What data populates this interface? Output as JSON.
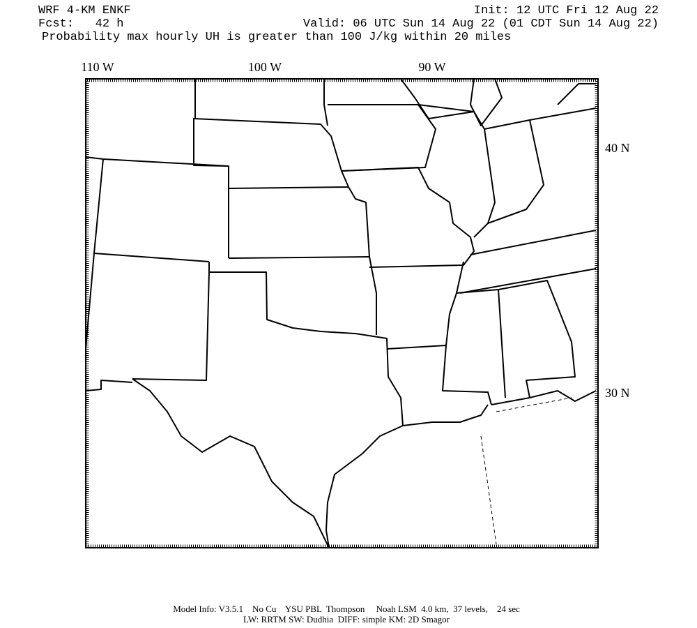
{
  "header": {
    "title": "WRF 4-KM ENKF",
    "forecast": "Fcst:   42 h",
    "init": "Init: 12 UTC Fri 12 Aug 22",
    "valid": "Valid: 06 UTC Sun 14 Aug 22 (01 CDT Sun 14 Aug 22)",
    "description": "Probability max hourly UH is greater than 100 J/kg within 20 miles"
  },
  "map": {
    "longitude_labels": [
      "110 W",
      "100 W",
      "90 W"
    ],
    "latitude_labels": [
      "40 N",
      "30 N"
    ]
  },
  "footer": {
    "line1": "Model Info: V3.5.1    No Cu    YSU PBL  Thompson     Noah LSM  4.0 km,  37 levels,    24 sec",
    "line2": "LW: RRTM SW: Dudhia  DIFF: simple KM: 2D Smagor"
  }
}
